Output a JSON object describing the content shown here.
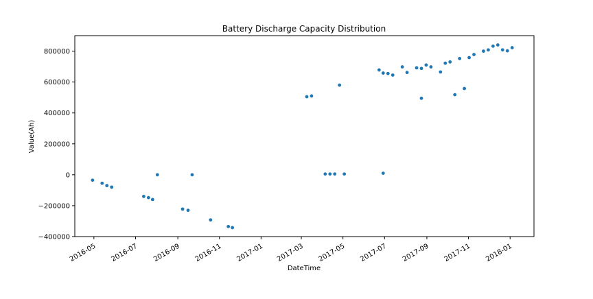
{
  "chart_data": {
    "type": "scatter",
    "title": "Battery Discharge Capacity Distribution",
    "xlabel": "DateTime",
    "ylabel": "Value(Ah)",
    "x_range": [
      "2016-04-03",
      "2018-02-05"
    ],
    "ylim": [
      -400000,
      900000
    ],
    "grid": false,
    "point_color": "#1f77b4",
    "x_ticks": [
      {
        "date": "2016-05-01",
        "label": "2016-05"
      },
      {
        "date": "2016-07-01",
        "label": "2016-07"
      },
      {
        "date": "2016-09-01",
        "label": "2016-09"
      },
      {
        "date": "2016-11-01",
        "label": "2016-11"
      },
      {
        "date": "2017-01-01",
        "label": "2017-01"
      },
      {
        "date": "2017-03-01",
        "label": "2017-03"
      },
      {
        "date": "2017-05-01",
        "label": "2017-05"
      },
      {
        "date": "2017-07-01",
        "label": "2017-07"
      },
      {
        "date": "2017-09-01",
        "label": "2017-09"
      },
      {
        "date": "2017-11-01",
        "label": "2017-11"
      },
      {
        "date": "2018-01-01",
        "label": "2018-01"
      }
    ],
    "y_ticks": [
      {
        "value": 800000,
        "label": "800000"
      },
      {
        "value": 600000,
        "label": "600000"
      },
      {
        "value": 400000,
        "label": "400000"
      },
      {
        "value": 200000,
        "label": "200000"
      },
      {
        "value": 0,
        "label": "0"
      },
      {
        "value": -200000,
        "label": "−200000"
      },
      {
        "value": -400000,
        "label": "−400000"
      }
    ],
    "points": [
      {
        "x": "2016-04-29",
        "y": -35000
      },
      {
        "x": "2016-05-13",
        "y": -55000
      },
      {
        "x": "2016-05-20",
        "y": -70000
      },
      {
        "x": "2016-05-27",
        "y": -80000
      },
      {
        "x": "2016-07-13",
        "y": -140000
      },
      {
        "x": "2016-07-20",
        "y": -148000
      },
      {
        "x": "2016-07-26",
        "y": -160000
      },
      {
        "x": "2016-08-02",
        "y": 0
      },
      {
        "x": "2016-09-08",
        "y": -222000
      },
      {
        "x": "2016-09-16",
        "y": -230000
      },
      {
        "x": "2016-09-22",
        "y": 0
      },
      {
        "x": "2016-10-19",
        "y": -292000
      },
      {
        "x": "2016-11-14",
        "y": -335000
      },
      {
        "x": "2016-11-20",
        "y": -342000
      },
      {
        "x": "2017-03-09",
        "y": 505000
      },
      {
        "x": "2017-03-16",
        "y": 510000
      },
      {
        "x": "2017-04-05",
        "y": 5000
      },
      {
        "x": "2017-04-12",
        "y": 5000
      },
      {
        "x": "2017-04-19",
        "y": 5000
      },
      {
        "x": "2017-04-26",
        "y": 580000
      },
      {
        "x": "2017-05-03",
        "y": 5000
      },
      {
        "x": "2017-06-23",
        "y": 678000
      },
      {
        "x": "2017-06-29",
        "y": 10000
      },
      {
        "x": "2017-06-29",
        "y": 658000
      },
      {
        "x": "2017-07-06",
        "y": 655000
      },
      {
        "x": "2017-07-13",
        "y": 645000
      },
      {
        "x": "2017-07-27",
        "y": 698000
      },
      {
        "x": "2017-08-03",
        "y": 662000
      },
      {
        "x": "2017-08-17",
        "y": 692000
      },
      {
        "x": "2017-08-24",
        "y": 688000
      },
      {
        "x": "2017-08-24",
        "y": 495000
      },
      {
        "x": "2017-08-31",
        "y": 710000
      },
      {
        "x": "2017-09-07",
        "y": 698000
      },
      {
        "x": "2017-09-21",
        "y": 665000
      },
      {
        "x": "2017-09-28",
        "y": 722000
      },
      {
        "x": "2017-10-05",
        "y": 730000
      },
      {
        "x": "2017-10-12",
        "y": 518000
      },
      {
        "x": "2017-10-19",
        "y": 752000
      },
      {
        "x": "2017-10-26",
        "y": 558000
      },
      {
        "x": "2017-11-02",
        "y": 758000
      },
      {
        "x": "2017-11-09",
        "y": 778000
      },
      {
        "x": "2017-11-23",
        "y": 800000
      },
      {
        "x": "2017-11-30",
        "y": 808000
      },
      {
        "x": "2017-12-07",
        "y": 832000
      },
      {
        "x": "2017-12-14",
        "y": 840000
      },
      {
        "x": "2017-12-21",
        "y": 808000
      },
      {
        "x": "2017-12-28",
        "y": 802000
      },
      {
        "x": "2018-01-04",
        "y": 822000
      }
    ]
  }
}
